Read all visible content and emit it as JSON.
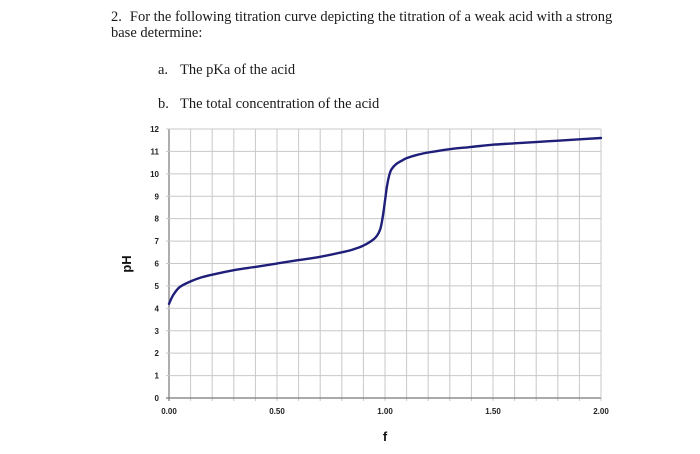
{
  "question": {
    "number": "2.",
    "text_line1": "For the following titration curve depicting the titration of a weak acid with a strong",
    "text_line2": "base determine:",
    "items": [
      {
        "label": "a.",
        "text": "The pKa of the acid"
      },
      {
        "label": "b.",
        "text": "The total concentration of the acid"
      }
    ]
  },
  "chart_data": {
    "type": "line",
    "title": "",
    "xlabel": "f",
    "ylabel": "pH",
    "xlim": [
      0,
      2
    ],
    "ylim": [
      0,
      12
    ],
    "x_tick_labels": [
      "0.00",
      "0.50",
      "1.00",
      "1.50",
      "2.00"
    ],
    "y_tick_labels": [
      "0",
      "1",
      "2",
      "3",
      "4",
      "5",
      "6",
      "7",
      "8",
      "9",
      "10",
      "11",
      "12"
    ],
    "grid": true,
    "x_minor_step": 0.1,
    "line_color": "#1f1f7a",
    "series": [
      {
        "name": "pH",
        "x": [
          0,
          0.02,
          0.05,
          0.1,
          0.15,
          0.2,
          0.3,
          0.4,
          0.5,
          0.6,
          0.7,
          0.8,
          0.85,
          0.9,
          0.95,
          0.97,
          0.98,
          0.99,
          1.0,
          1.01,
          1.02,
          1.03,
          1.05,
          1.08,
          1.1,
          1.15,
          1.2,
          1.3,
          1.4,
          1.5,
          1.6,
          1.75,
          1.9,
          2.0
        ],
        "values": [
          4.2,
          4.6,
          4.95,
          5.2,
          5.38,
          5.5,
          5.7,
          5.85,
          6.0,
          6.15,
          6.3,
          6.5,
          6.62,
          6.8,
          7.1,
          7.35,
          7.6,
          8.1,
          8.8,
          9.5,
          9.95,
          10.2,
          10.42,
          10.6,
          10.7,
          10.85,
          10.95,
          11.1,
          11.2,
          11.3,
          11.36,
          11.45,
          11.54,
          11.6
        ]
      }
    ]
  }
}
